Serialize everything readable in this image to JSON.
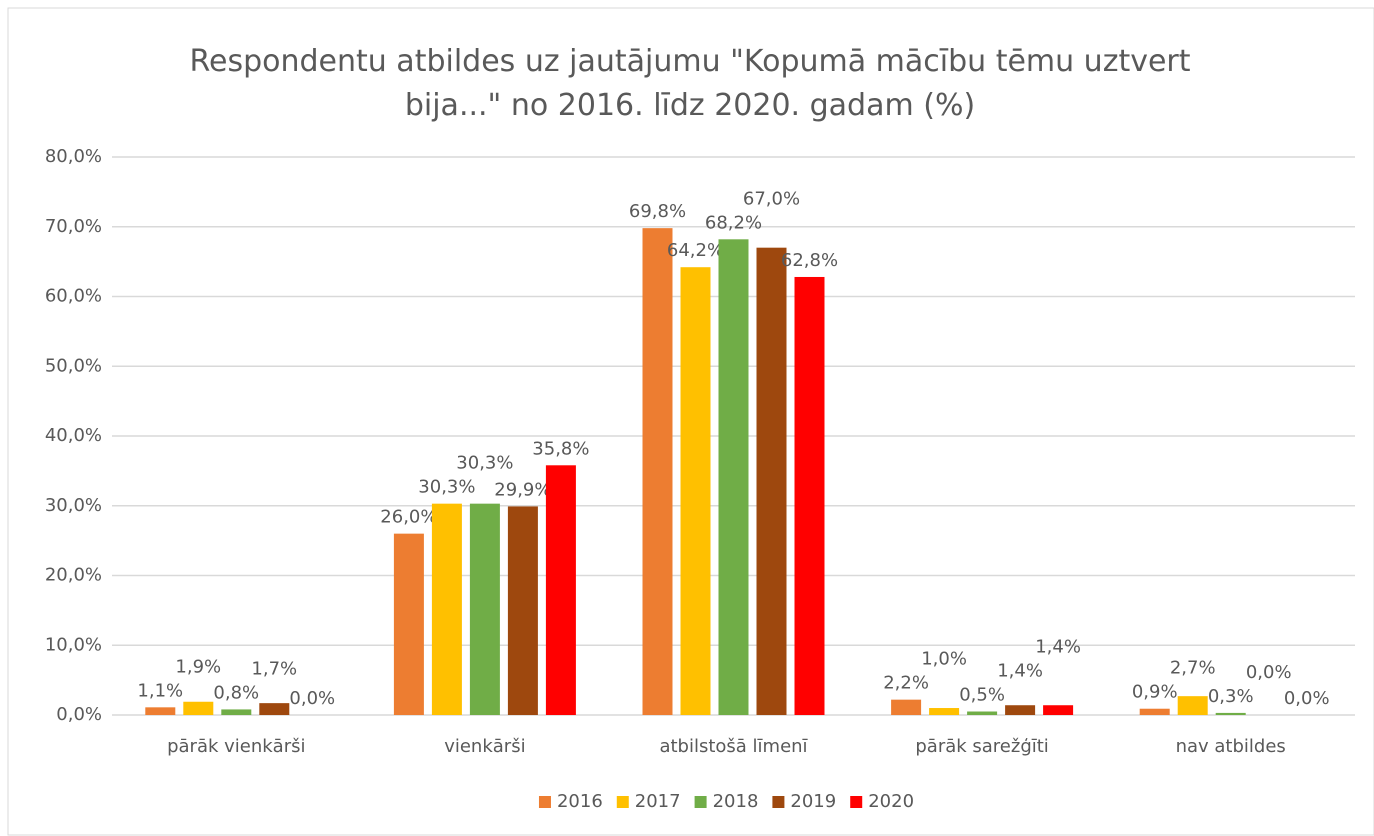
{
  "chart_data": {
    "type": "bar",
    "title": "Respondentu atbildes uz jautājumu \"Kopumā mācību tēmu uztvert bija...\" no 2016. līdz 2020. gadam (%)",
    "categories": [
      "pārāk vienkārši",
      "vienkārši",
      "atbilstošā līmenī",
      "pārāk sarežģīti",
      "nav atbildes"
    ],
    "series": [
      {
        "name": "2016",
        "color": "#ed7d31",
        "values": [
          1.1,
          26.0,
          69.8,
          2.2,
          0.9
        ],
        "value_labels": [
          "1,1%",
          "26,0%",
          "69,8%",
          "2,2%",
          "0,9%"
        ]
      },
      {
        "name": "2017",
        "color": "#ffc000",
        "values": [
          1.9,
          30.3,
          64.2,
          1.0,
          2.7
        ],
        "value_labels": [
          "1,9%",
          "30,3%",
          "64,2%",
          "1,0%",
          "2,7%"
        ]
      },
      {
        "name": "2018",
        "color": "#70ad47",
        "values": [
          0.8,
          30.3,
          68.2,
          0.5,
          0.3
        ],
        "value_labels": [
          "0,8%",
          "30,3%",
          "68,2%",
          "0,5%",
          "0,3%"
        ]
      },
      {
        "name": "2019",
        "color": "#9e480e",
        "values": [
          1.7,
          29.9,
          67.0,
          1.4,
          0.0
        ],
        "value_labels": [
          "1,7%",
          "29,9%",
          "67,0%",
          "1,4%",
          "0,0%"
        ]
      },
      {
        "name": "2020",
        "color": "#ff0000",
        "values": [
          0.0,
          35.8,
          62.8,
          1.4,
          0.0
        ],
        "value_labels": [
          "0,0%",
          "35,8%",
          "62,8%",
          "1,4%",
          "0,0%"
        ]
      }
    ],
    "ylim": [
      0,
      80
    ],
    "yticks": [
      {
        "value": 0,
        "label": "0,0%"
      },
      {
        "value": 10,
        "label": "10,0%"
      },
      {
        "value": 20,
        "label": "20,0%"
      },
      {
        "value": 30,
        "label": "30,0%"
      },
      {
        "value": 40,
        "label": "40,0%"
      },
      {
        "value": 50,
        "label": "50,0%"
      },
      {
        "value": 60,
        "label": "60,0%"
      },
      {
        "value": 70,
        "label": "70,0%"
      },
      {
        "value": 80,
        "label": "80,0%"
      }
    ],
    "grid": true,
    "legend": "bottom"
  }
}
